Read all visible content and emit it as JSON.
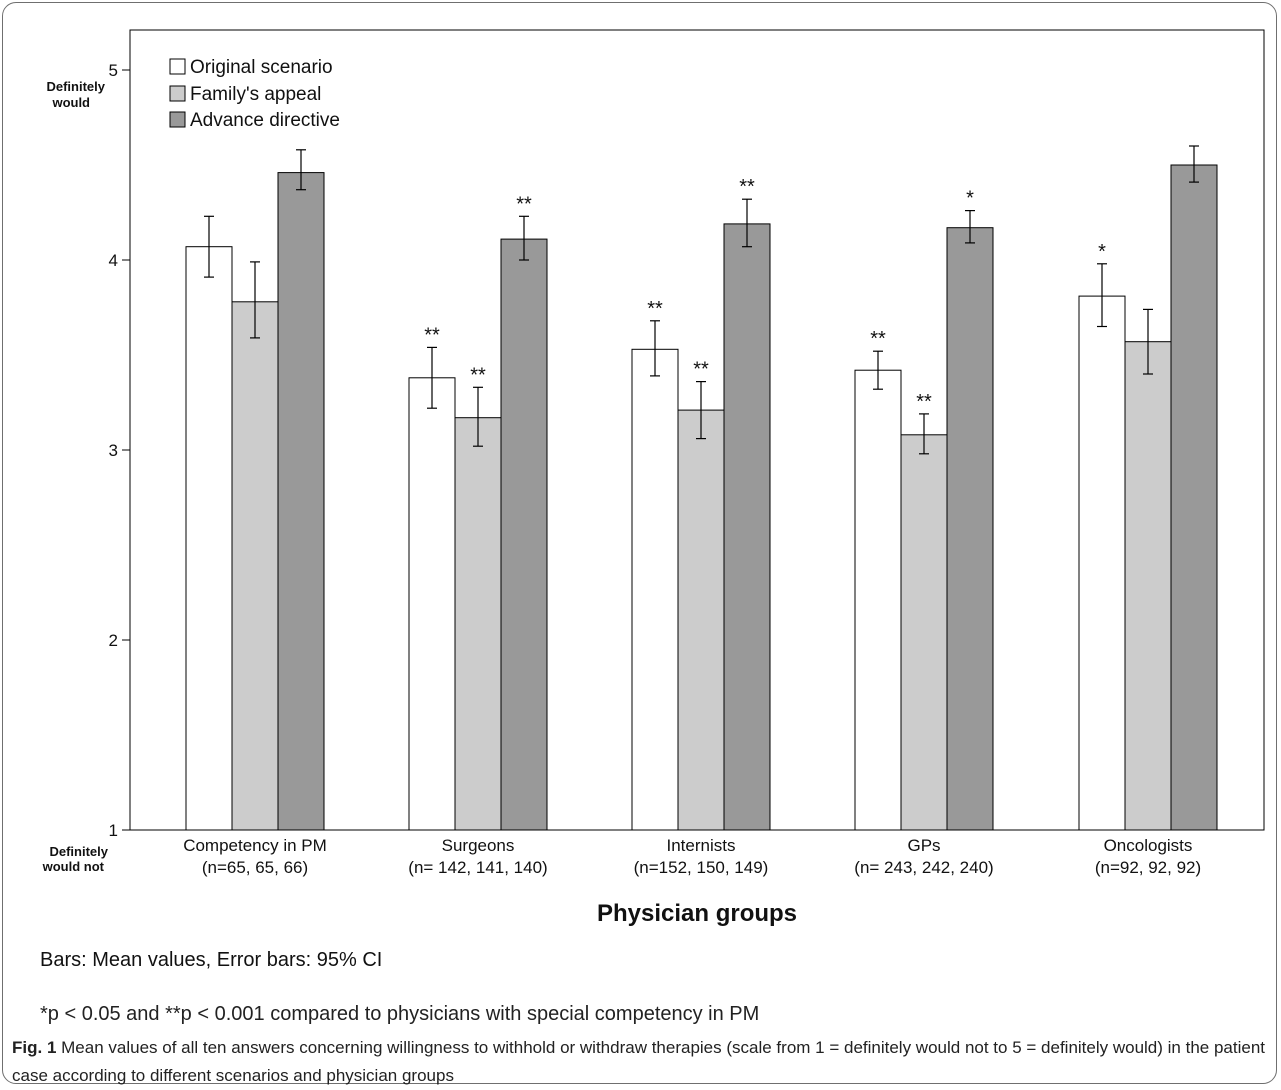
{
  "chart_data": {
    "type": "bar",
    "categories": [
      "Competency in PM",
      "Surgeons",
      "Internists",
      "GPs",
      "Oncologists"
    ],
    "category_sublabels": [
      "(n=65, 65, 66)",
      "(n= 142, 141, 140)",
      "(n=152, 150, 149)",
      "(n= 243, 242, 240)",
      "(n=92, 92, 92)"
    ],
    "series": [
      {
        "name": "Original scenario",
        "color": "#ffffff",
        "values": [
          4.07,
          3.38,
          3.53,
          3.42,
          3.81
        ],
        "ci": [
          [
            3.91,
            4.23
          ],
          [
            3.22,
            3.54
          ],
          [
            3.39,
            3.68
          ],
          [
            3.32,
            3.52
          ],
          [
            3.65,
            3.98
          ]
        ],
        "annotations": [
          "",
          "**",
          "**",
          "**",
          "*"
        ]
      },
      {
        "name": "Family's appeal",
        "color": "#cccccc",
        "values": [
          3.78,
          3.17,
          3.21,
          3.08,
          3.57
        ],
        "ci": [
          [
            3.59,
            3.99
          ],
          [
            3.02,
            3.33
          ],
          [
            3.06,
            3.36
          ],
          [
            2.98,
            3.19
          ],
          [
            3.4,
            3.74
          ]
        ],
        "annotations": [
          "",
          "**",
          "**",
          "**",
          ""
        ]
      },
      {
        "name": "Advance directive",
        "color": "#999999",
        "values": [
          4.46,
          4.11,
          4.19,
          4.17,
          4.5
        ],
        "ci": [
          [
            4.37,
            4.58
          ],
          [
            4.0,
            4.23
          ],
          [
            4.07,
            4.32
          ],
          [
            4.09,
            4.26
          ],
          [
            4.41,
            4.6
          ]
        ],
        "annotations": [
          "",
          "**",
          "**",
          "*",
          ""
        ]
      }
    ],
    "xlabel": "Physician groups",
    "ylim": [
      1,
      5
    ],
    "yticks": [
      1,
      2,
      3,
      4,
      5
    ],
    "ytick_text": {
      "top_line1": "Definitely",
      "top_line2": "would",
      "bottom_line1": "Definitely",
      "bottom_line2": "would not"
    },
    "legend_position": "top-left",
    "grid": false,
    "notes": [
      "Bars: Mean values, Error bars: 95% CI",
      "*p < 0.05 and **p < 0.001 compared to physicians with special competency in PM"
    ]
  },
  "caption": {
    "label": "Fig. 1",
    "text": " Mean values of all ten answers concerning willingness to withhold or withdraw therapies (scale from 1 = definitely would not to 5 = definitely would) in the patient case according to different scenarios and physician groups"
  }
}
